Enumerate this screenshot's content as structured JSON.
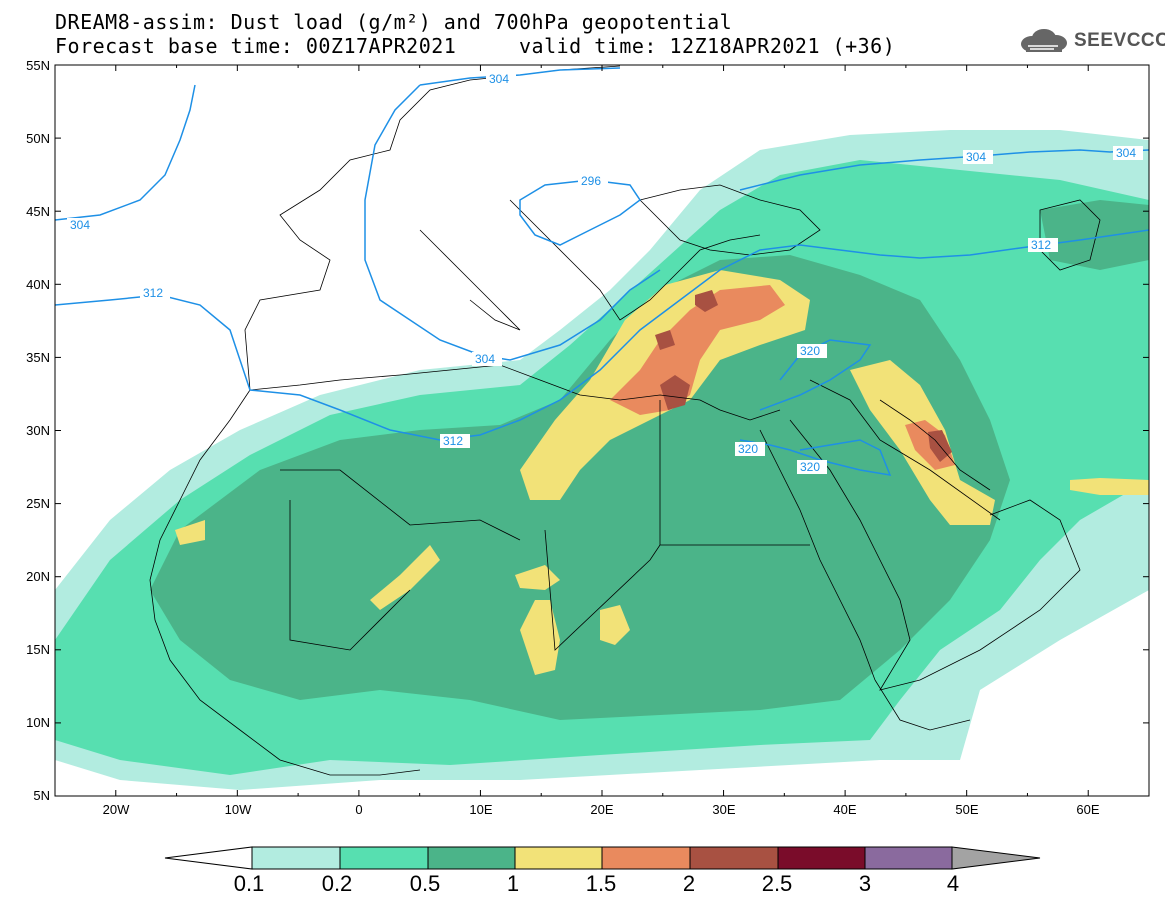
{
  "title": {
    "line1": "DREAM8-assim: Dust load (g/m²) and 700hPa geopotential",
    "line2": "Forecast base time: 00Z17APR2021     valid time: 12Z18APR2021 (+36)"
  },
  "logo": {
    "text": "SEEVCCC",
    "icon": "cloud-icon"
  },
  "map": {
    "lat_labels": [
      "55N",
      "50N",
      "45N",
      "40N",
      "35N",
      "30N",
      "25N",
      "20N",
      "15N",
      "10N",
      "5N"
    ],
    "lon_labels": [
      "20W",
      "10W",
      "0",
      "10E",
      "20E",
      "30E",
      "40E",
      "50E",
      "60E"
    ],
    "lat_range": [
      5,
      55
    ],
    "lon_range": [
      -25,
      65
    ],
    "geopotential_labels": [
      "304",
      "304",
      "304",
      "296",
      "312",
      "312",
      "304",
      "312",
      "320",
      "320",
      "320",
      "304"
    ]
  },
  "colorbar": {
    "ticks": [
      "0.1",
      "0.2",
      "0.5",
      "1",
      "1.5",
      "2",
      "2.5",
      "3",
      "4"
    ],
    "colors": [
      "#ffffff",
      "#b2ece0",
      "#57dfb0",
      "#4bb489",
      "#f2e278",
      "#e98a5e",
      "#a85142",
      "#7a0c2a",
      "#8a6a9e",
      "#a3a3a3"
    ]
  },
  "colors": {
    "contour": "#1e90e6",
    "dust_0_1": "#b2ece0",
    "dust_0_2": "#57dfb0",
    "dust_0_5": "#4bb489",
    "dust_1": "#f2e278",
    "dust_1_5": "#e98a5e",
    "dust_2": "#a85142"
  }
}
